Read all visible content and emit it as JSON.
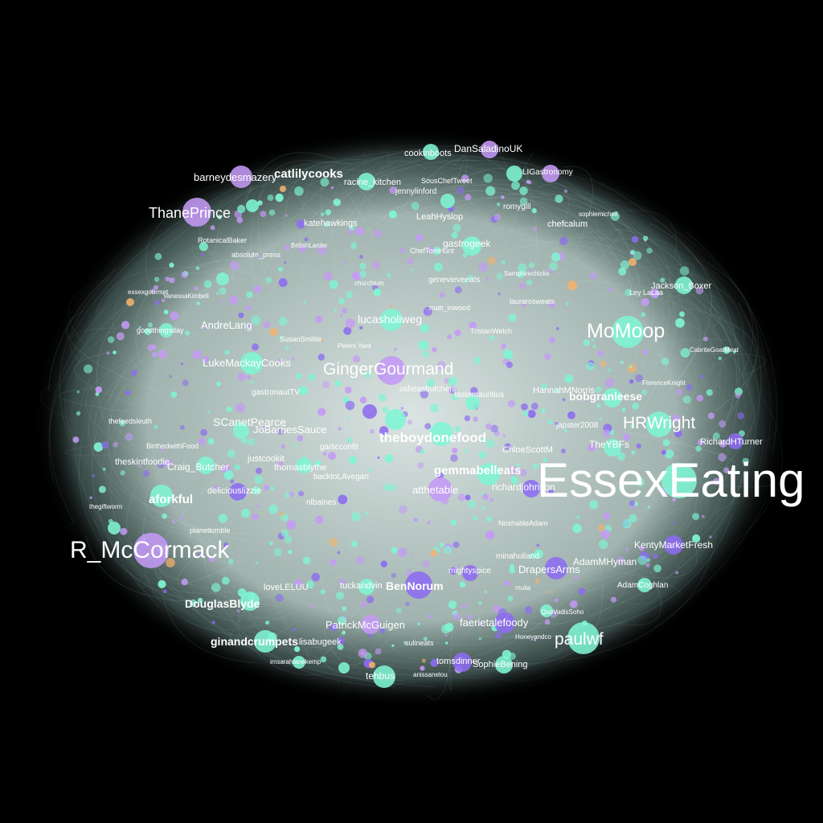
{
  "colors": {
    "background": "#000000",
    "edge": "#dff6f2",
    "teal_node": "#7ff5d4",
    "lilac_node": "#c49af5",
    "violet_node": "#8c6cf0",
    "orange_node": "#f5b26b",
    "label": "#ffffff"
  },
  "labels": {
    "essexeating": "EssexEating",
    "r_mccormack": "R_McCormack",
    "gingergourmand": "GingerGourmand",
    "momoop": "MoMoop",
    "thaneprince": "ThanePrince",
    "hrwright": "HRWright",
    "theboydonefood": "theboydonefood",
    "paulwf": "paulwf",
    "catlilycooks": "catlilycooks",
    "barneydesmazery": "barneydesmazery",
    "gemmabelleats": "gemmabelleats",
    "aforkful": "aforkful",
    "douglasblyde": "DouglasBlyde",
    "ginandcrumpets": "ginandcrumpets",
    "bennorum": "BenNorum",
    "bobgranleese": "bobgranleese",
    "lucasholiweg": "lucasholiweg",
    "lukemackaycooks": "LukeMackayCooks",
    "scanetpearce": "SCanetPearce",
    "joebarriessauce": "JoBarriesSauce",
    "andrelang": "AndreLang",
    "dansaladinouk": "DanSaladinoUK",
    "cookinboots": "cookinboots",
    "racine_kitchen": "racine_kitchen",
    "theyfbs": "TheYBFs",
    "draperaarms": "DrapersArms",
    "adammhyman": "AdamMHyman",
    "faerietalefoody": "faerietalefoody",
    "patrickmcguigen": "PatrickMcGuigen",
    "tehbus": "tehbus",
    "jacksonboxer": "Jackson_Boxer",
    "richardhturner": "RichardHTurner",
    "kentymarketfresh": "KentyMarketFresh",
    "atthetable": "atthetable",
    "richardjohnson": "richardjohnson",
    "craig_butcher": "Craig_Butcher",
    "theskintfoodie": "theskintfoodie",
    "gastrogeek": "gastrogeek",
    "chefcalum": "chefcalum",
    "katehawkings": "katehawkings",
    "leahhyslop": "LeahHyslop",
    "jennylinford": "jennylinford",
    "romygill": "romygill",
    "souschef": "SousChefTweet",
    "rotanicalbaker": "RotanicalBaker",
    "absolute_press": "absolute_press",
    "genevieveeats": "genevieveeats",
    "matt_inwood": "matt_inwood",
    "laurarosweats": "laurarosweats",
    "chloescott": "ChloeScottM",
    "japster2008": "japster2008",
    "gastronautv": "gastronautTV",
    "justcookit": "justcookit",
    "thomasblythe": "thomasblythe",
    "deliciouslizzie": "deliciouslizzie",
    "nlbaines": "nlbaines",
    "tuckandvin": "tuckandvin",
    "lovelelu": "loveLELUU",
    "minaholland": "minaholland",
    "mightyspice": "mightyspice",
    "hannahnorris": "HannahMNorris",
    "tastemauritius": "tastemauritius",
    "osheasbutchers": "osheasbutchers",
    "adamcoghlan": "AdamCoghlan",
    "noshableadam": "NoshableAdam",
    "tomsdinner": "tomsdinner",
    "sophiebening": "SophieBening",
    "anissanelou": "anissanelou",
    "imsarahlanekemp": "imsarahlanekemp",
    "lisabugeek": "lisabugeek",
    "sulineats": "sulineats",
    "honeyandco": "Honeyandco",
    "quovadissoho": "QuoVadisSoho",
    "mulia": "mulia",
    "essexgourmet": "essexgourmet",
    "vanessakimbell": "VanessaKimbell",
    "goodthingsday": "goodthingsday",
    "thegiftworm": "thegiftworm",
    "gastronomy": "LIGastronomy",
    "sophiemichell": "sophiemichell",
    "leylalaa": "Ley LaLaa",
    "cabritegoatmeat": "CabriteGoatMeat",
    "petersyard": "Peters Yard",
    "susansmillie": "SusanSmillie",
    "britishlarder": "BritishLarder",
    "cheftomhunt": "ChefTomHunt",
    "churchlum": "churchlum",
    "tristanwelch": "TristanWelch",
    "florencenight": "FlorenceKnight",
    "samphirechicks": "Samphirechicks",
    "backtolavegan": "backtoLAvegan",
    "garlicconfit": "garlicconfit",
    "thefeedleuth": "thefeedsleuth",
    "birthedwithfood": "BirthedwithFood",
    "planetkimble": "planetkimble"
  }
}
